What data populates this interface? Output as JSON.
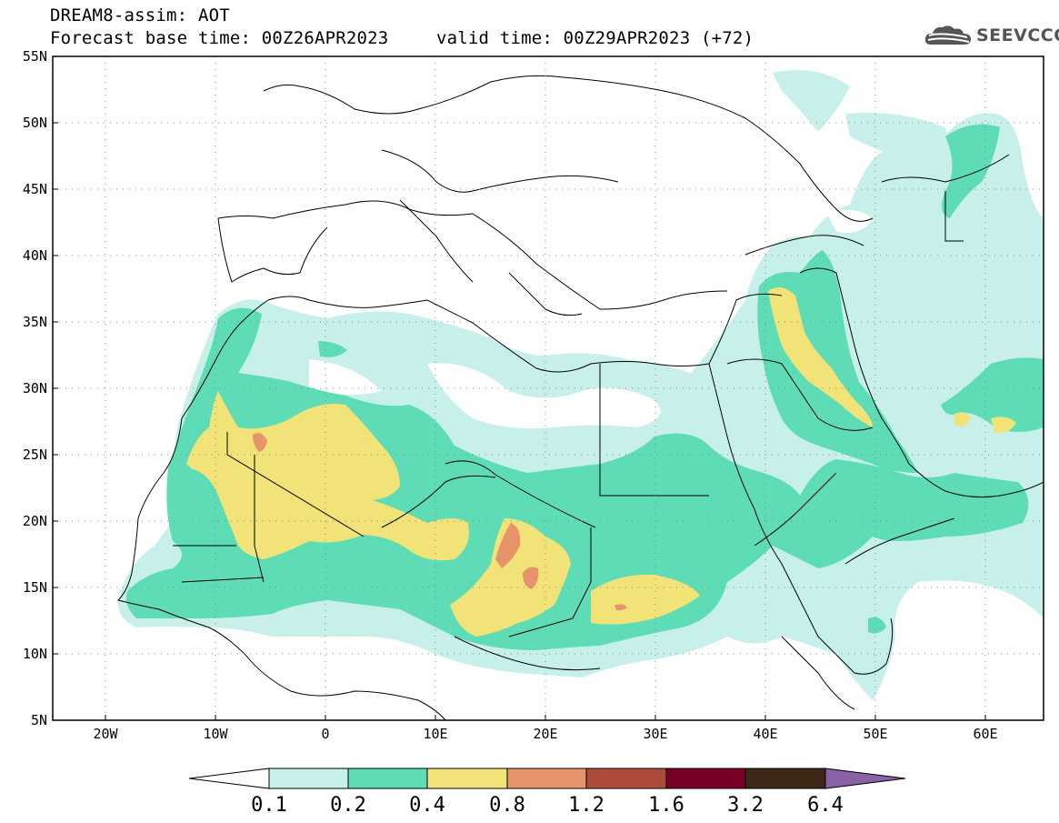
{
  "header": {
    "title": "DREAM8-assim: AOT",
    "base_time": "Forecast base time: 00Z26APR2023",
    "valid_time": "valid time: 00Z29APR2023 (+72)"
  },
  "logo": {
    "text": "SEEVCCC",
    "icon": "cloud-icon"
  },
  "map": {
    "lat_labels": [
      "55N",
      "50N",
      "45N",
      "40N",
      "35N",
      "30N",
      "25N",
      "20N",
      "15N",
      "10N",
      "5N"
    ],
    "lon_labels": [
      "20W",
      "10W",
      "0",
      "10E",
      "20E",
      "30E",
      "40E",
      "50E",
      "60E"
    ],
    "lat_range": [
      5,
      55
    ],
    "lon_range": [
      -25,
      65
    ],
    "grid": "dotted"
  },
  "colorbar": {
    "labels": [
      "0.1",
      "0.2",
      "0.4",
      "0.8",
      "1.2",
      "1.6",
      "3.2",
      "6.4"
    ],
    "colors": [
      "#c8f0ea",
      "#5ddcb6",
      "#f1e377",
      "#e7946a",
      "#ad4c3a",
      "#7b0025",
      "#3d2716",
      "#8a62a6"
    ]
  },
  "colors": {
    "level_0_1": "#c8f0ea",
    "level_0_2": "#5ddcb6",
    "level_0_4": "#f1e377",
    "level_0_8": "#e7946a"
  }
}
